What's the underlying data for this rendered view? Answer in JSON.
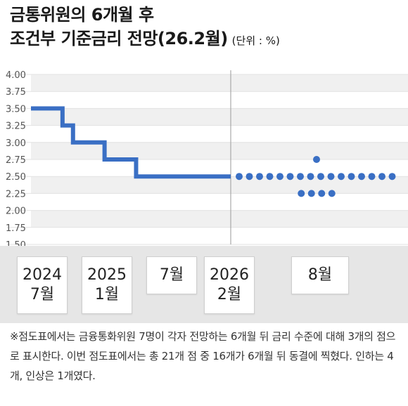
{
  "title": {
    "line1": "금통위원의 6개월 후",
    "line2": "조건부 기준금리 전망(26.2월)",
    "unit": "(단위 : %)"
  },
  "periods": [
    {
      "label": "2024\n7월"
    },
    {
      "label": "2025\n1월"
    },
    {
      "label": "7월"
    },
    {
      "label": "2026\n2월"
    },
    {
      "label": "8월"
    }
  ],
  "footnote": "※점도표에서는 금융통화위원 7명이 각자 전망하는 6개월 뒤 금리 수준에 대해 3개의 점으로 표시한다. 이번 점도표에서는 총 21개 점 중 16개가 6개월 뒤 동결에 찍혔다. 인하는 4개, 인상은 1개였다.",
  "chart_data": {
    "type": "line",
    "ylim": [
      1.5,
      4.0
    ],
    "yticks": [
      "4.00",
      "3.75",
      "3.50",
      "3.25",
      "3.00",
      "2.75",
      "2.50",
      "2.25",
      "2.00",
      "1.75",
      "1.50"
    ],
    "colors": {
      "line": "#3a6fc4",
      "dots": "#3a6fc4",
      "grid": "#e2e2e2",
      "band": "#f0f0f0"
    },
    "series": [
      {
        "kind": "step",
        "points": [
          {
            "x": "2024-07",
            "y": 3.5
          },
          {
            "x": "2024-10",
            "y": 3.25
          },
          {
            "x": "2024-11",
            "y": 3.0
          },
          {
            "x": "2025-02",
            "y": 2.75
          },
          {
            "x": "2025-05",
            "y": 2.5
          },
          {
            "x": "2026-02",
            "y": 2.5
          }
        ]
      },
      {
        "kind": "dots",
        "points": [
          {
            "x": "2026-08",
            "y": 2.75,
            "count": 1
          },
          {
            "x": "2026-08",
            "y": 2.5,
            "count": 16
          },
          {
            "x": "2026-08",
            "y": 2.25,
            "count": 4
          }
        ]
      }
    ]
  }
}
